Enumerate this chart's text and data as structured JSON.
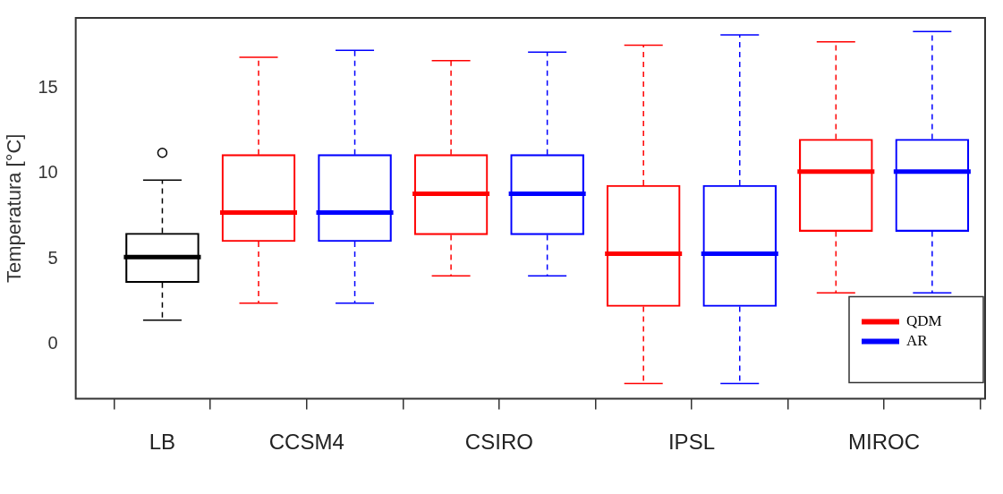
{
  "chart_data": {
    "type": "box",
    "ylabel": "Temperatura [°C]",
    "categories": [
      "LB",
      "CCSM4",
      "CSIRO",
      "IPSL",
      "MIROC"
    ],
    "ylim": [
      -3.2,
      19.1
    ],
    "yticks": [
      0,
      5,
      10,
      15
    ],
    "grid": false,
    "legend": "bottom right",
    "series": [
      {
        "color": "#000000",
        "boxes": [
          {
            "low": 1.4,
            "q1": 3.6,
            "median": 5.1,
            "q3": 6.5,
            "high": 9.6,
            "outliers": [
              11.2
            ]
          },
          null,
          null,
          null,
          null
        ]
      },
      {
        "name": "QDM",
        "color": "#ff0000",
        "boxes": [
          null,
          {
            "low": 2.4,
            "q1": 6.0,
            "median": 7.7,
            "q3": 11.1,
            "high": 16.8
          },
          {
            "low": 4.0,
            "q1": 6.4,
            "median": 8.8,
            "q3": 11.1,
            "high": 16.6
          },
          {
            "low": -2.3,
            "q1": 2.2,
            "median": 5.3,
            "q3": 9.3,
            "high": 17.5
          },
          {
            "low": 3.0,
            "q1": 6.6,
            "median": 10.1,
            "q3": 12.0,
            "high": 17.7
          }
        ]
      },
      {
        "name": "AR",
        "color": "#0000ff",
        "boxes": [
          null,
          {
            "low": 2.4,
            "q1": 6.0,
            "median": 7.7,
            "q3": 11.1,
            "high": 17.2
          },
          {
            "low": 4.0,
            "q1": 6.4,
            "median": 8.8,
            "q3": 11.1,
            "high": 17.1
          },
          {
            "low": -2.3,
            "q1": 2.2,
            "median": 5.3,
            "q3": 9.3,
            "high": 18.1
          },
          {
            "low": 3.0,
            "q1": 6.6,
            "median": 10.1,
            "q3": 12.0,
            "high": 18.3
          }
        ]
      }
    ]
  }
}
